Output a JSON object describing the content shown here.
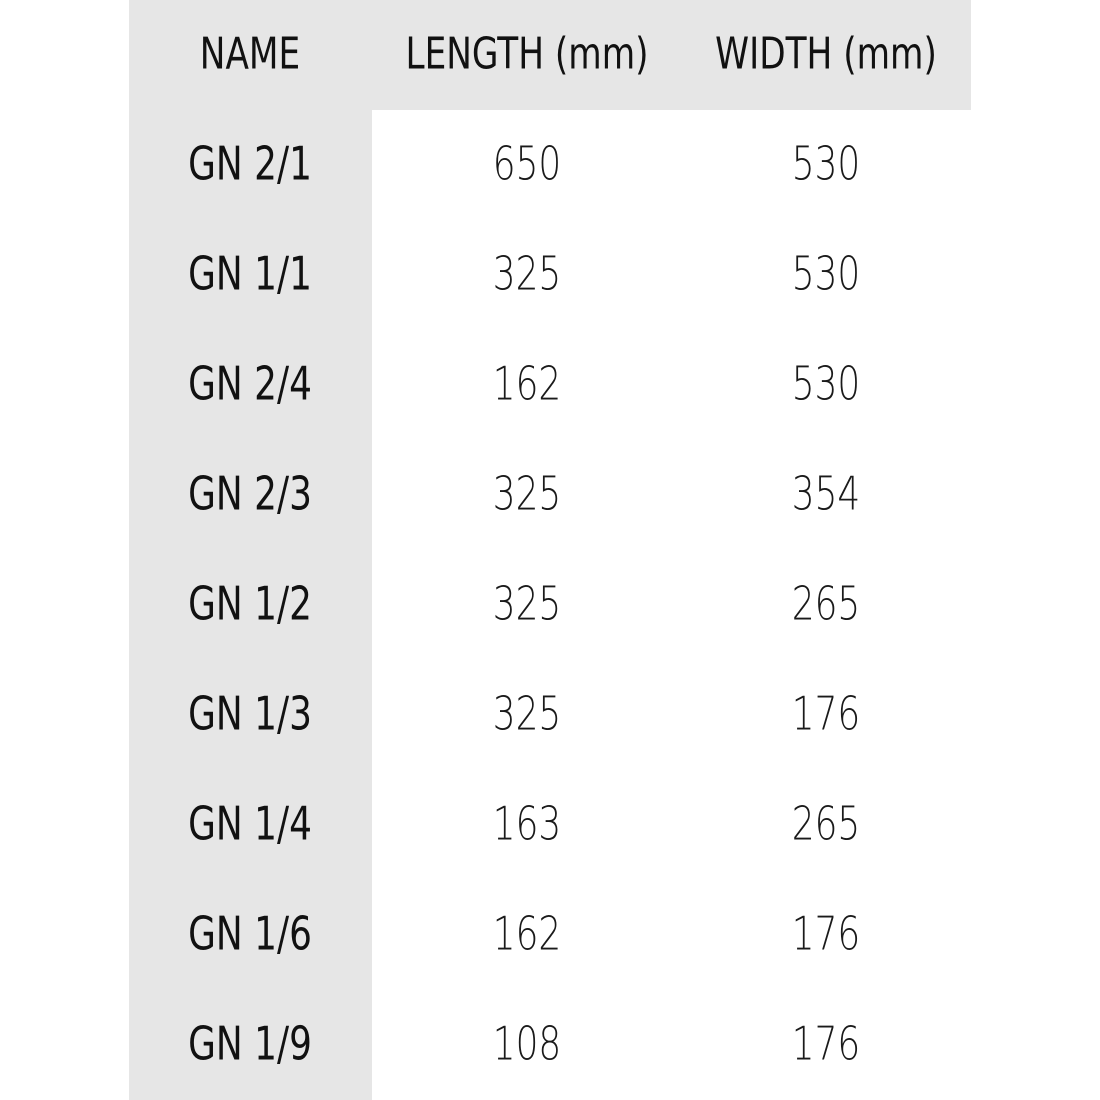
{
  "table": {
    "header": [
      "NAME",
      "LENGTH (mm)",
      "WIDTH (mm)"
    ],
    "rows": [
      [
        "GN 2/1",
        650,
        530
      ],
      [
        "GN 1/1",
        325,
        530
      ],
      [
        "GN 2/4",
        162,
        530
      ],
      [
        "GN 2/3",
        325,
        354
      ],
      [
        "GN 1/2",
        325,
        265
      ],
      [
        "GN 1/3",
        325,
        176
      ],
      [
        "GN 1/4",
        163,
        265
      ],
      [
        "GN 1/6",
        162,
        176
      ],
      [
        "GN 1/9",
        108,
        176
      ]
    ]
  }
}
